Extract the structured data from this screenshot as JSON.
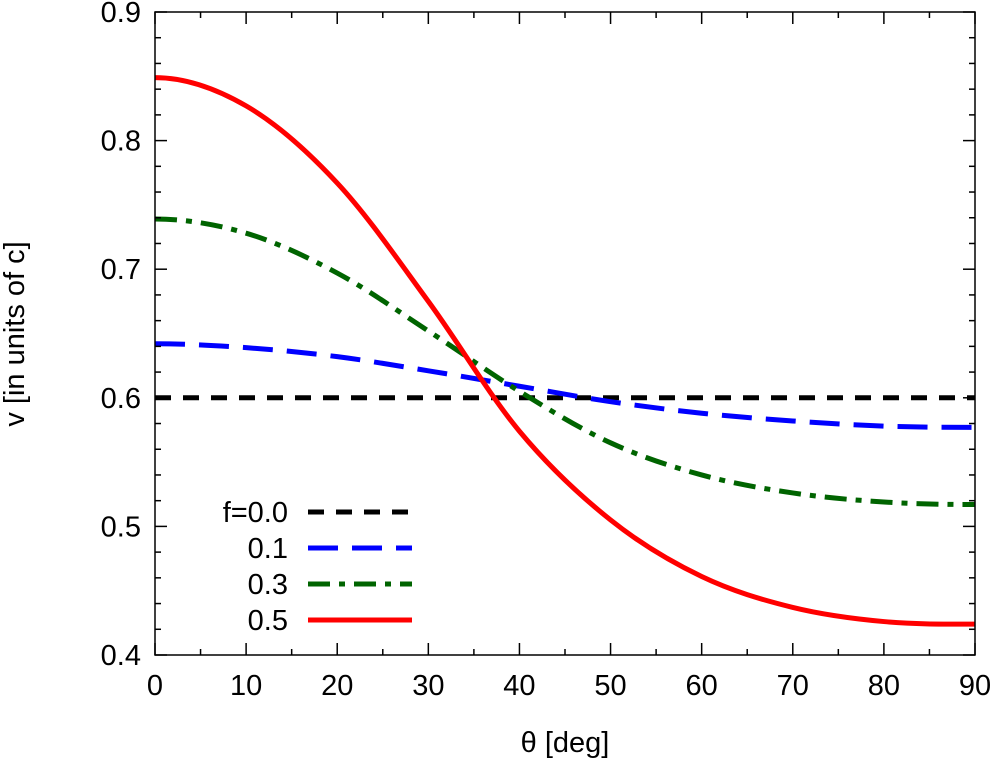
{
  "chart_data": {
    "type": "line",
    "title": "",
    "xlabel": "θ [deg]",
    "ylabel": "v [in units of c]",
    "xlim": [
      0,
      90
    ],
    "ylim": [
      0.4,
      0.9
    ],
    "xticks": [
      0,
      10,
      20,
      30,
      40,
      50,
      60,
      70,
      80,
      90
    ],
    "xtick_labels": [
      "0",
      "10",
      "20",
      "30",
      "40",
      "50",
      "60",
      "70",
      "80",
      "90"
    ],
    "yticks": [
      0.4,
      0.5,
      0.6,
      0.7,
      0.8,
      0.9
    ],
    "ytick_labels": [
      "0.4",
      "0.5",
      "0.6",
      "0.7",
      "0.8",
      "0.9"
    ],
    "grid": false,
    "legend_position": "bottom-left",
    "x": [
      0,
      10,
      20,
      30,
      40,
      50,
      60,
      70,
      80,
      90
    ],
    "series": [
      {
        "name": "f=0.0",
        "color": "#000000",
        "dash": "dashed",
        "values": [
          0.6,
          0.6,
          0.6,
          0.6,
          0.6,
          0.6,
          0.6,
          0.6,
          0.6,
          0.6
        ]
      },
      {
        "name": "0.1",
        "color": "#0000ff",
        "dash": "long-dashed",
        "values": [
          0.642,
          0.639,
          0.632,
          0.621,
          0.609,
          0.597,
          0.588,
          0.582,
          0.578,
          0.577
        ]
      },
      {
        "name": "0.3",
        "color": "#006400",
        "dash": "dash-dot",
        "values": [
          0.739,
          0.728,
          0.697,
          0.652,
          0.605,
          0.565,
          0.54,
          0.526,
          0.519,
          0.517
        ]
      },
      {
        "name": "0.5",
        "color": "#ff0000",
        "dash": "solid",
        "values": [
          0.849,
          0.827,
          0.767,
          0.675,
          0.574,
          0.505,
          0.461,
          0.437,
          0.426,
          0.424
        ]
      }
    ]
  }
}
